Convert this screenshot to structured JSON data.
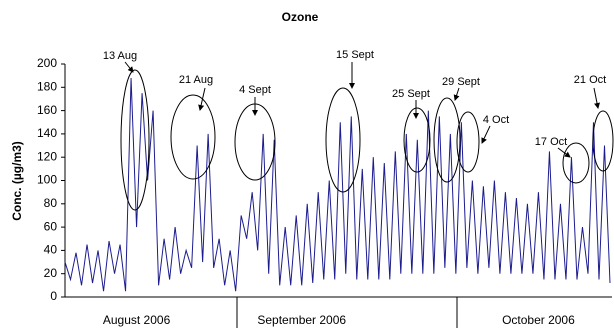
{
  "chart_data": {
    "type": "line",
    "title": "Ozone",
    "y_label": "Conc. (µg/m3)",
    "categories": [
      null,
      null,
      null,
      null,
      null,
      null,
      null,
      null,
      null,
      null,
      null,
      null,
      null,
      "August 2006",
      null,
      null,
      null,
      null,
      null,
      null,
      null,
      null,
      null,
      null,
      null,
      null,
      null,
      null,
      null,
      null,
      null,
      null,
      null,
      null,
      null,
      null,
      null,
      null,
      null,
      null,
      null,
      null,
      null,
      "September 2006",
      null,
      null,
      null,
      null,
      null,
      null,
      null,
      null,
      null,
      null,
      null,
      null,
      null,
      null,
      null,
      null,
      null,
      null,
      null,
      null,
      null,
      null,
      null,
      null,
      null,
      null,
      null,
      null,
      null,
      null,
      null,
      null,
      null,
      null,
      null,
      null,
      null,
      null,
      null,
      null,
      null,
      null,
      "October 2006",
      null,
      null,
      null,
      null,
      null,
      null,
      null,
      null,
      null,
      null,
      null,
      null,
      null
    ],
    "series": [
      {
        "color": "#1c1c8f",
        "values": [
          30,
          15,
          38,
          10,
          45,
          12,
          40,
          5,
          48,
          20,
          45,
          5,
          188,
          60,
          175,
          100,
          160,
          10,
          50,
          15,
          60,
          20,
          40,
          25,
          130,
          30,
          140,
          25,
          50,
          10,
          40,
          5,
          70,
          50,
          90,
          40,
          140,
          20,
          135,
          10,
          60,
          10,
          70,
          10,
          80,
          12,
          90,
          15,
          100,
          15,
          150,
          20,
          155,
          15,
          110,
          15,
          120,
          15,
          115,
          15,
          125,
          20,
          140,
          20,
          135,
          20,
          160,
          20,
          155,
          25,
          140,
          20,
          150,
          25,
          100,
          20,
          95,
          25,
          100,
          20,
          90,
          20,
          85,
          20,
          80,
          20,
          90,
          15,
          125,
          15,
          80,
          15,
          120,
          15,
          60,
          20,
          150,
          15,
          130,
          12
        ]
      }
    ],
    "ylim": [
      0,
      200
    ],
    "yticks": [
      0,
      20,
      40,
      60,
      80,
      100,
      120,
      140,
      160,
      180,
      200
    ],
    "annotations": [
      "13 Aug",
      "21 Aug",
      "4 Sept",
      "15 Sept",
      "25 Sept",
      "29 Sept",
      "4 Oct",
      "17 Oct",
      "21 Oct"
    ]
  }
}
